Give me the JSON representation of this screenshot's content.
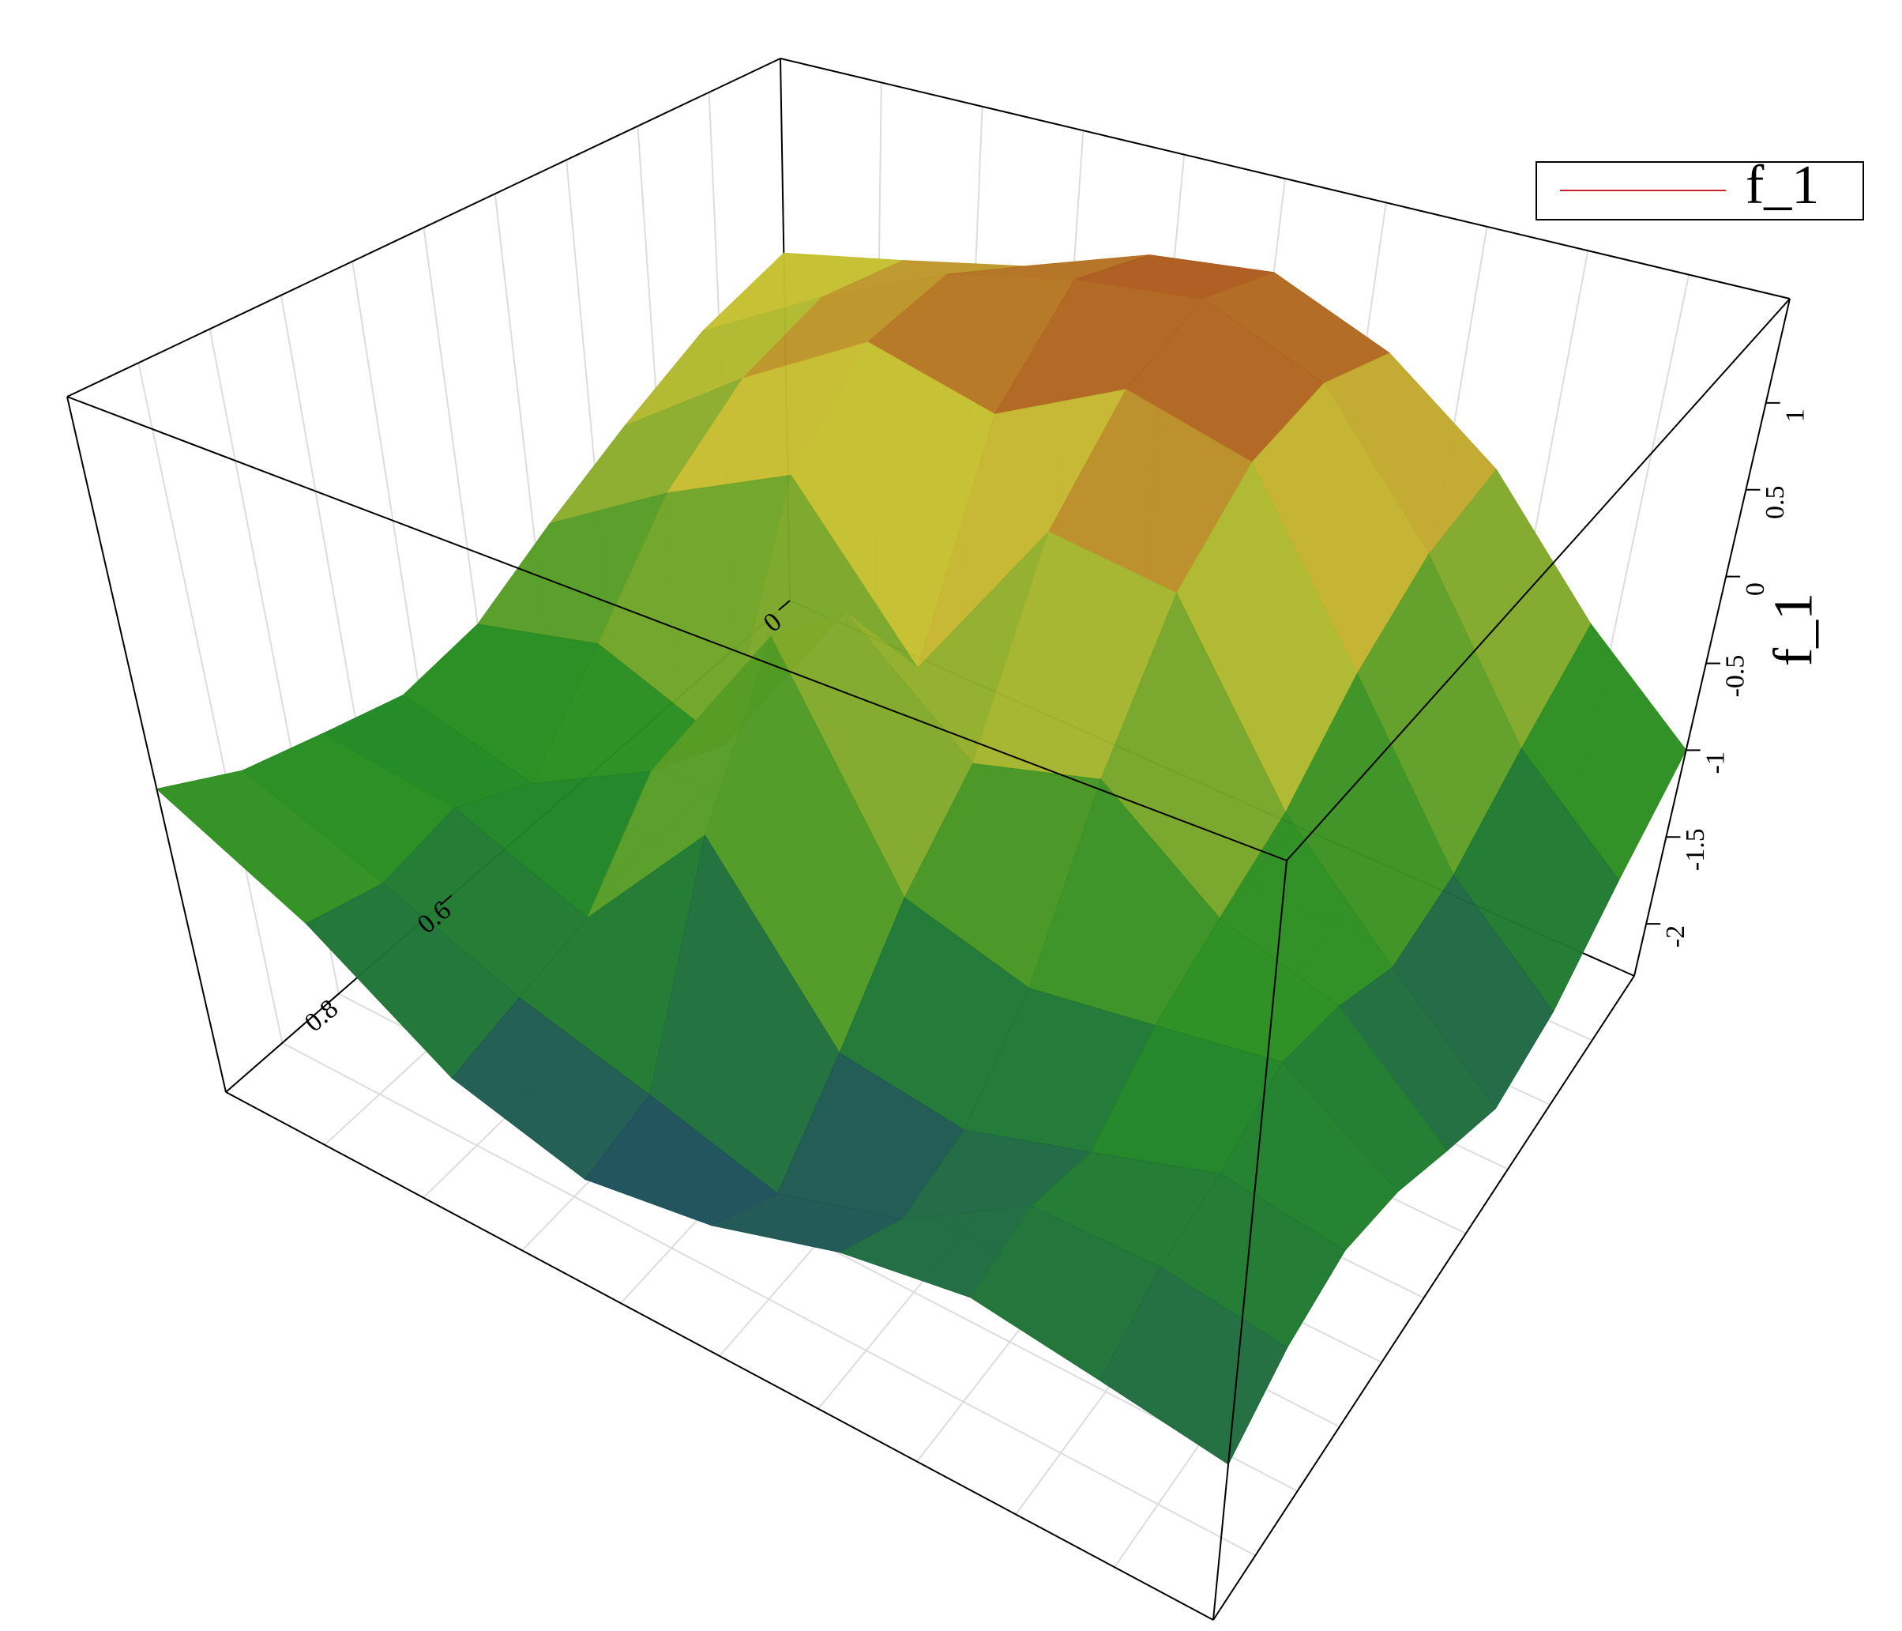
{
  "chart_data": {
    "type": "surface",
    "zlabel": "f_1",
    "series": [
      {
        "name": "f_1",
        "color": "#cc2222",
        "z": [
          [
            0.2,
            0.4,
            0.6,
            0.9,
            1.0,
            0.7,
            0.2,
            -0.5,
            -1.0
          ],
          [
            0.0,
            0.5,
            0.9,
            1.1,
            1.2,
            0.9,
            0.1,
            -0.8,
            -1.3
          ],
          [
            -0.3,
            0.3,
            0.8,
            0.6,
            1.0,
            0.8,
            -0.2,
            -1.1,
            -1.6
          ],
          [
            -0.6,
            -0.1,
            0.3,
            -0.6,
            0.5,
            0.4,
            -0.6,
            -1.2,
            -1.7
          ],
          [
            -0.9,
            -0.7,
            -1.0,
            0.1,
            -0.5,
            -0.3,
            -0.8,
            -1.0,
            -1.5
          ],
          [
            -1.0,
            -1.2,
            -0.8,
            0.3,
            -0.9,
            -1.1,
            -1.0,
            -0.9,
            -1.3
          ],
          [
            -0.9,
            -1.0,
            -1.3,
            -0.5,
            -1.4,
            -1.5,
            -1.3,
            -1.1,
            -1.2
          ],
          [
            -0.8,
            -1.1,
            -1.4,
            -1.6,
            -1.8,
            -1.6,
            -1.2,
            -1.2,
            -1.3
          ],
          [
            -0.6,
            -1.0,
            -1.5,
            -1.7,
            -1.6,
            -1.4,
            -1.3,
            -1.4,
            -1.5
          ]
        ]
      }
    ],
    "colormap": [
      "#1a1a90",
      "#1f8a1f",
      "#c8c030",
      "#9a1010"
    ],
    "xlim": [
      0,
      1
    ],
    "xticks": [
      0,
      0.6,
      0.8
    ],
    "zlim": [
      -2.3,
      1.6
    ],
    "zticks": [
      -2,
      -1.5,
      -1,
      -0.5,
      0,
      0.5,
      1
    ],
    "legend": "top-right"
  }
}
